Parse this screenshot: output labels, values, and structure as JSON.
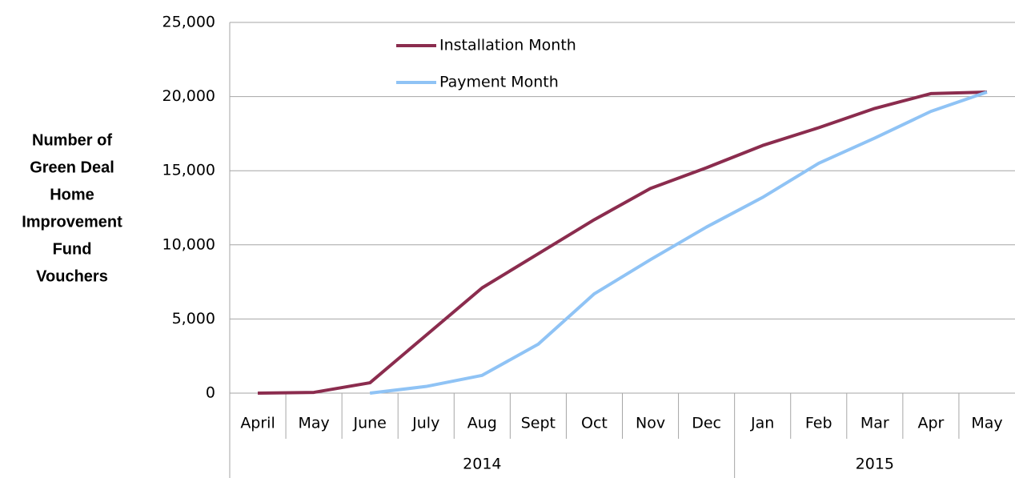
{
  "chart_data": {
    "type": "line",
    "y_axis_title_lines": [
      "Number of",
      "Green Deal",
      "Home",
      "Improvement",
      "Fund",
      "Vouchers"
    ],
    "categories": [
      "April",
      "May",
      "June",
      "July",
      "Aug",
      "Sept",
      "Oct",
      "Nov",
      "Dec",
      "Jan",
      "Feb",
      "Mar",
      "Apr",
      "May"
    ],
    "category_groups": [
      "2014",
      "2015"
    ],
    "series": [
      {
        "name": "Installation Month",
        "color": "#8b2c4e",
        "values": [
          0,
          50,
          700,
          3900,
          7100,
          9400,
          11700,
          13800,
          15200,
          16700,
          17900,
          19200,
          20200,
          20300
        ]
      },
      {
        "name": "Payment Month",
        "color": "#8fc3f5",
        "values": [
          null,
          null,
          0,
          450,
          1200,
          3300,
          6700,
          9000,
          11200,
          13200,
          15500,
          17200,
          19000,
          20300
        ]
      }
    ],
    "ylim": [
      0,
      25000
    ],
    "yticks": [
      0,
      {
        "value": 5000,
        "label": "5,000"
      },
      {
        "value": 10000,
        "label": "10,000"
      },
      {
        "value": 15000,
        "label": "15,000"
      },
      {
        "value": 20000,
        "label": "20,000"
      },
      {
        "value": 25000,
        "label": "25,000"
      }
    ],
    "grid": true,
    "legend": "top-left"
  }
}
